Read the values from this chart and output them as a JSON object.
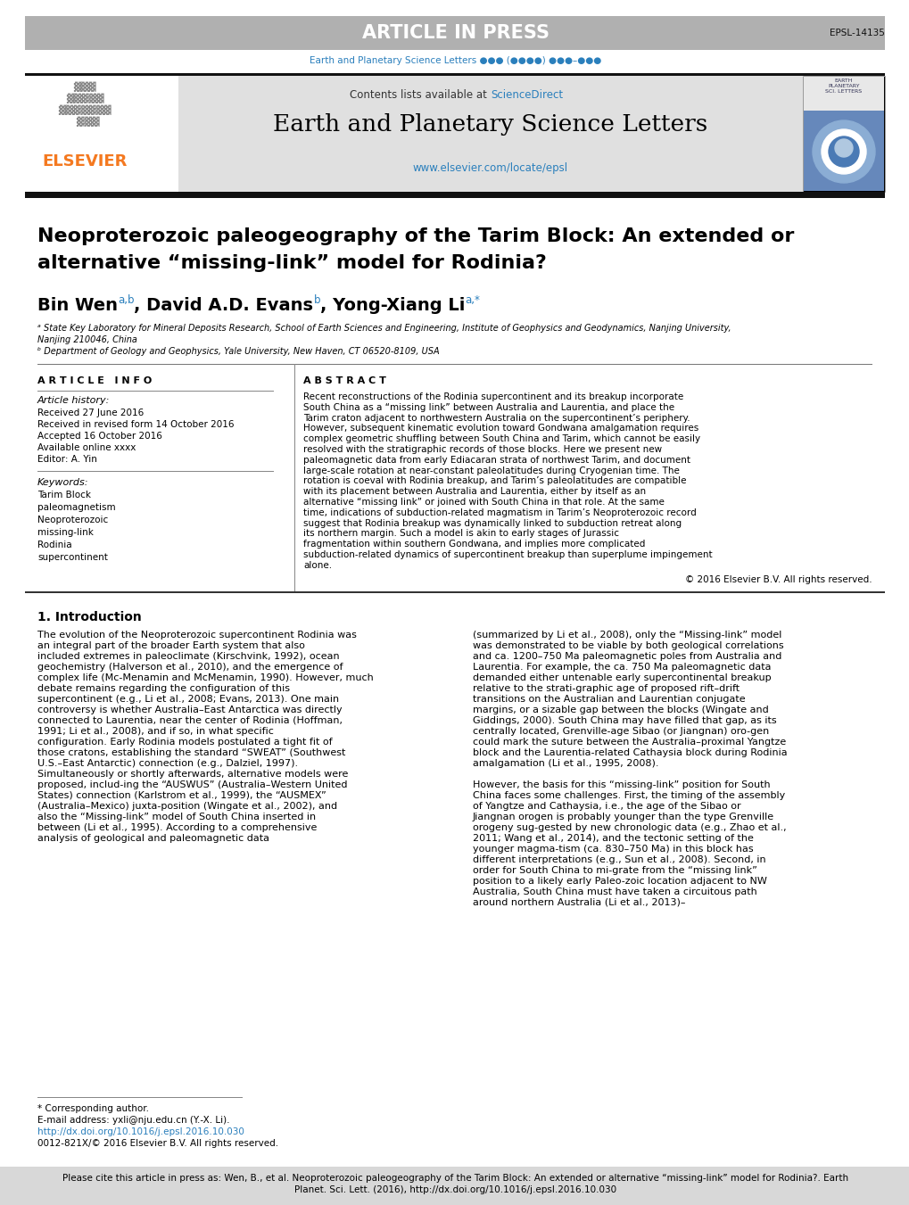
{
  "article_in_press_text": "ARTICLE IN PRESS",
  "article_in_press_bg": "#b0b0b0",
  "article_in_press_color": "#ffffff",
  "epsl_ref": "EPSL-14135",
  "journal_subtitle": "Earth and Planetary Science Letters ●●● (●●●●) ●●●–●●●",
  "journal_subtitle_color": "#2a7fbc",
  "contents_text": "Contents lists available at ",
  "sciencedirect_text": "ScienceDirect",
  "sciencedirect_color": "#2a7fbc",
  "journal_name": "Earth and Planetary Science Letters",
  "journal_url": "www.elsevier.com/locate/epsl",
  "journal_url_color": "#2a7fbc",
  "elsevier_color": "#f47920",
  "header_bg": "#e0e0e0",
  "paper_title_line1": "Neoproterozoic paleogeography of the Tarim Block: An extended or",
  "paper_title_line2": "alternative “missing-link” model for Rodinia?",
  "author_name1": "Bin Wen",
  "author_sup1": "a,b",
  "author_name2": ", David A.D. Evans",
  "author_sup2": "b",
  "author_name3": ", Yong-Xiang Li",
  "author_sup3": "a,*",
  "affil_a": "ᵃ State Key Laboratory for Mineral Deposits Research, School of Earth Sciences and Engineering, Institute of Geophysics and Geodynamics, Nanjing University,",
  "affil_a2": "Nanjing 210046, China",
  "affil_b": "ᵇ Department of Geology and Geophysics, Yale University, New Haven, CT 06520-8109, USA",
  "article_info_title": "ARTICLE  INFO",
  "abstract_title": "ABSTRACT",
  "article_history_label": "Article history:",
  "received_text": "Received 27 June 2016",
  "revised_text": "Received in revised form 14 October 2016",
  "accepted_text": "Accepted 16 October 2016",
  "available_text": "Available online xxxx",
  "editor_text": "Editor: A. Yin",
  "keywords_label": "Keywords:",
  "keywords": [
    "Tarim Block",
    "paleomagnetism",
    "Neoproterozoic",
    "missing-link",
    "Rodinia",
    "supercontinent"
  ],
  "abstract_text": "Recent reconstructions of the Rodinia supercontinent and its breakup incorporate South China as a “missing link” between Australia and Laurentia, and place the Tarim craton adjacent to northwestern Australia on the supercontinent’s periphery. However, subsequent kinematic evolution toward Gondwana amalgamation requires complex geometric shuffling between South China and Tarim, which cannot be easily resolved with the stratigraphic records of those blocks. Here we present new paleomagnetic data from early Ediacaran strata of northwest Tarim, and document large-scale rotation at near-constant paleolatitudes during Cryogenian time. The rotation is coeval with Rodinia breakup, and Tarim’s paleolatitudes are compatible with its placement between Australia and Laurentia, either by itself as an alternative “missing link” or joined with South China in that role. At the same time, indications of subduction-related magmatism in Tarim’s Neoproterozoic record suggest that Rodinia breakup was dynamically linked to subduction retreat along its northern margin. Such a model is akin to early stages of Jurassic fragmentation within southern Gondwana, and implies more complicated subduction-related dynamics of supercontinent breakup than superplume impingement alone.",
  "copyright_text": "© 2016 Elsevier B.V. All rights reserved.",
  "section1_title": "1. Introduction",
  "intro_indent": "    The evolution of the Neoproterozoic supercontinent Rodinia was an integral part of the broader Earth system that also included extremes in paleoclimate (Kirschvink, 1992), ocean geochemistry (Halverson et al., 2010), and the emergence of complex life (Mc-Menamin and McMenamin, 1990). However, much debate remains regarding the configuration of this supercontinent (e.g., Li et al., 2008; Evans, 2013). One main controversy is whether Australia–East Antarctica was directly connected to Laurentia, near the center of Rodinia (Hoffman, 1991; Li et al., 2008), and if so, in what specific configuration. Early Rodinia models postulated a tight fit of those cratons, establishing the standard “SWEAT” (Southwest U.S.–East Antarctic) connection (e.g., Dalziel, 1997). Simultaneously or shortly afterwards, alternative models were proposed, includ-ing the “AUSWUS” (Australia–Western United States) connection (Karlstrom et al., 1999), the “AUSMEX” (Australia–Mexico) juxta-position (Wingate et al., 2002), and also the “Missing-link” model of South China inserted in between (Li et al., 1995). According to a comprehensive analysis of geological and paleomagnetic data",
  "intro_text2": "(summarized by Li et al., 2008), only the “Missing-link” model was demonstrated to be viable by both geological correlations and ca. 1200–750 Ma paleomagnetic poles from Australia and Laurentia. For example, the ca. 750 Ma paleomagnetic data demanded either untenable early supercontinental breakup relative to the strati-graphic age of proposed rift–drift transitions on the Australian and Laurentian conjugate margins, or a sizable gap between the blocks (Wingate and Giddings, 2000). South China may have filled that gap, as its centrally located, Grenville-age Sibao (or Jiangnan) oro-gen could mark the suture between the Australia–proximal Yangtze block and the Laurentia-related Cathaysia block during Rodinia amalgamation (Li et al., 1995, 2008).",
  "intro_text3": "    However, the basis for this “missing-link” position for South China faces some challenges. First, the timing of the assembly of Yangtze and Cathaysia, i.e., the age of the Sibao or Jiangnan orogen is probably younger than the type Grenville orogeny sug-gested by new chronologic data (e.g., Zhao et al., 2011; Wang et al., 2014), and the tectonic setting of the younger magma-tism (ca. 830–750 Ma) in this block has different interpretations (e.g., Sun et al., 2008). Second, in order for South China to mi-grate from the “missing link” position to a likely early Paleo-zoic location adjacent to NW Australia, South China must have taken a circuitous path around northern Australia (Li et al., 2013)–",
  "footnote_corresponding": "* Corresponding author.",
  "footnote_email": "E-mail address: yxli@nju.edu.cn (Y.-X. Li).",
  "footnote_doi": "http://dx.doi.org/10.1016/j.epsl.2016.10.030",
  "footnote_issn": "0012-821X/© 2016 Elsevier B.V. All rights reserved.",
  "footer_cite_line1": "Please cite this article in press as: Wen, B., et al. Neoproterozoic paleogeography of the Tarim Block: An extended or alternative “missing-link” model for Rodinia?. Earth",
  "footer_cite_line2": "Planet. Sci. Lett. (2016), http://dx.doi.org/10.1016/j.epsl.2016.10.030",
  "footer_bg": "#d8d8d8",
  "bg_color": "#ffffff",
  "text_color": "#000000"
}
